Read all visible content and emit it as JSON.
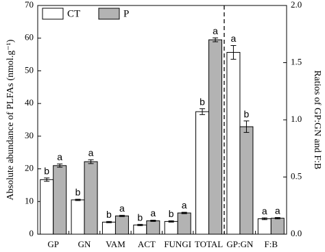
{
  "chart_data": {
    "type": "bar",
    "categories": [
      "GP",
      "GN",
      "VAM",
      "ACT",
      "FUNGI",
      "TOTAL",
      "GP:GN",
      "F:B"
    ],
    "ylabel": "Absolute abundance of PLFAs (nmol.g⁻¹)",
    "y2label": "Ratios of GP:GN and F:B",
    "ylim": [
      0,
      70
    ],
    "yticks": [
      0,
      10,
      20,
      30,
      40,
      50,
      60,
      70
    ],
    "y2lim": [
      0,
      2.0
    ],
    "y2ticks": [
      {
        "value": 0,
        "label": "0.0"
      },
      0.5,
      {
        "value": 1.0,
        "label": "1.0"
      },
      1.5,
      {
        "value": 2.0,
        "label": "2.0"
      }
    ],
    "legend": "upper left",
    "series": [
      {
        "name": "CT",
        "color": "#ffffff",
        "values": [
          16.7,
          10.5,
          3.7,
          2.8,
          3.9,
          37.5,
          null,
          null
        ],
        "errors": [
          0.5,
          0.2,
          0.2,
          0.2,
          0.2,
          0.9,
          null,
          null
        ],
        "letters": [
          "b",
          "b",
          "b",
          "b",
          "b",
          "b",
          null,
          null
        ]
      },
      {
        "name": "P",
        "color": "#b3b3b3",
        "values": [
          21.0,
          22.2,
          5.6,
          4.1,
          6.5,
          59.5,
          null,
          null
        ],
        "errors": [
          0.5,
          0.6,
          0.2,
          0.2,
          0.2,
          0.6,
          null,
          null
        ],
        "letters": [
          "a",
          "a",
          "a",
          "a",
          "a",
          "a",
          null,
          null
        ]
      },
      {
        "axis": "y2",
        "color": "#ffffff",
        "values": [
          null,
          null,
          null,
          null,
          null,
          null,
          1.59,
          0.135
        ],
        "errors": [
          null,
          null,
          null,
          null,
          null,
          null,
          0.06,
          0.008
        ],
        "letters": [
          null,
          null,
          null,
          null,
          null,
          null,
          "a",
          "a"
        ]
      },
      {
        "axis": "y2",
        "color": "#b3b3b3",
        "values": [
          null,
          null,
          null,
          null,
          null,
          null,
          0.94,
          0.14
        ],
        "errors": [
          null,
          null,
          null,
          null,
          null,
          null,
          0.05,
          0.006
        ],
        "letters": [
          null,
          null,
          null,
          null,
          null,
          null,
          "b",
          "a"
        ]
      }
    ]
  }
}
